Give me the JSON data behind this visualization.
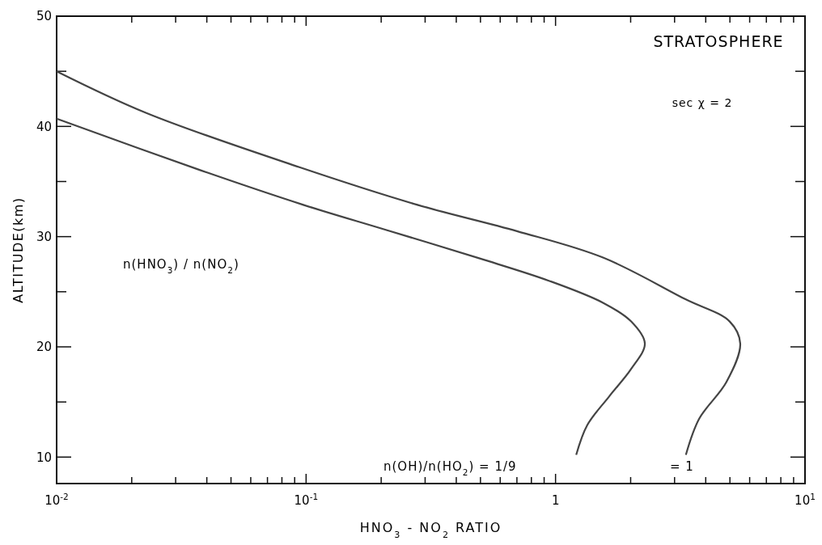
{
  "chart_data": {
    "type": "line",
    "xlabel": "HNO$_{3}$ - NO$_{2}$  RATIO",
    "ylabel": "ALTITUDE(km)",
    "log": "x",
    "grid": false,
    "marker": "none",
    "line_style": "solid",
    "xlim": [
      0.01,
      10
    ],
    "ylim": [
      7.6,
      50
    ],
    "xticks": [
      {
        "value": 0.01,
        "label": "10$^{-2}$"
      },
      {
        "value": 0.02,
        "label": null
      },
      {
        "value": 0.03,
        "label": null
      },
      {
        "value": 0.04,
        "label": null
      },
      {
        "value": 0.05,
        "label": null
      },
      {
        "value": 0.06,
        "label": null
      },
      {
        "value": 0.07,
        "label": null
      },
      {
        "value": 0.08,
        "label": null
      },
      {
        "value": 0.09,
        "label": null
      },
      {
        "value": 0.1,
        "label": "10$^{-1}$"
      },
      {
        "value": 0.2,
        "label": null
      },
      {
        "value": 0.3,
        "label": null
      },
      {
        "value": 0.4,
        "label": null
      },
      {
        "value": 0.5,
        "label": null
      },
      {
        "value": 0.6,
        "label": null
      },
      {
        "value": 0.7,
        "label": null
      },
      {
        "value": 0.8,
        "label": null
      },
      {
        "value": 0.9,
        "label": null
      },
      1,
      {
        "value": 2,
        "label": null
      },
      {
        "value": 3,
        "label": null
      },
      {
        "value": 4,
        "label": null
      },
      {
        "value": 5,
        "label": null
      },
      {
        "value": 6,
        "label": null
      },
      {
        "value": 7,
        "label": null
      },
      {
        "value": 8,
        "label": null
      },
      {
        "value": 9,
        "label": null
      },
      {
        "value": 10,
        "label": "10$^{1}$"
      }
    ],
    "yticks": [
      10,
      {
        "value": 15,
        "label": null
      },
      20,
      {
        "value": 25,
        "label": null
      },
      30,
      {
        "value": 35,
        "label": null
      },
      40,
      {
        "value": 45,
        "label": null
      },
      50
    ],
    "series": [
      {
        "color": "#444444",
        "x": [
          0.01,
          0.038,
          0.097,
          0.21,
          0.5,
          0.94,
          1.55,
          2.01,
          2.28,
          2.01,
          1.64,
          1.34,
          1.21
        ],
        "values": [
          40.7,
          36,
          32.9,
          30.6,
          28,
          26,
          24,
          22.3,
          20.3,
          18,
          15.5,
          12.9,
          10.2
        ]
      },
      {
        "color": "#444444",
        "x": [
          0.01,
          0.023,
          0.094,
          0.278,
          0.7,
          1.55,
          3.33,
          4.99,
          5.5,
          4.84,
          3.77,
          3.33
        ],
        "values": [
          45,
          41.2,
          36.3,
          32.9,
          30.5,
          28.1,
          24.3,
          22.3,
          20.3,
          16.8,
          13.5,
          10.2
        ]
      }
    ],
    "annotations": [
      "STRATOSPHERE",
      "sec χ  =  2",
      "n(HNO$_{3}$) / n(NO$_{2}$)",
      "n(OH)/n(HO$_{2}$)   =  1/9",
      "=   1"
    ]
  }
}
